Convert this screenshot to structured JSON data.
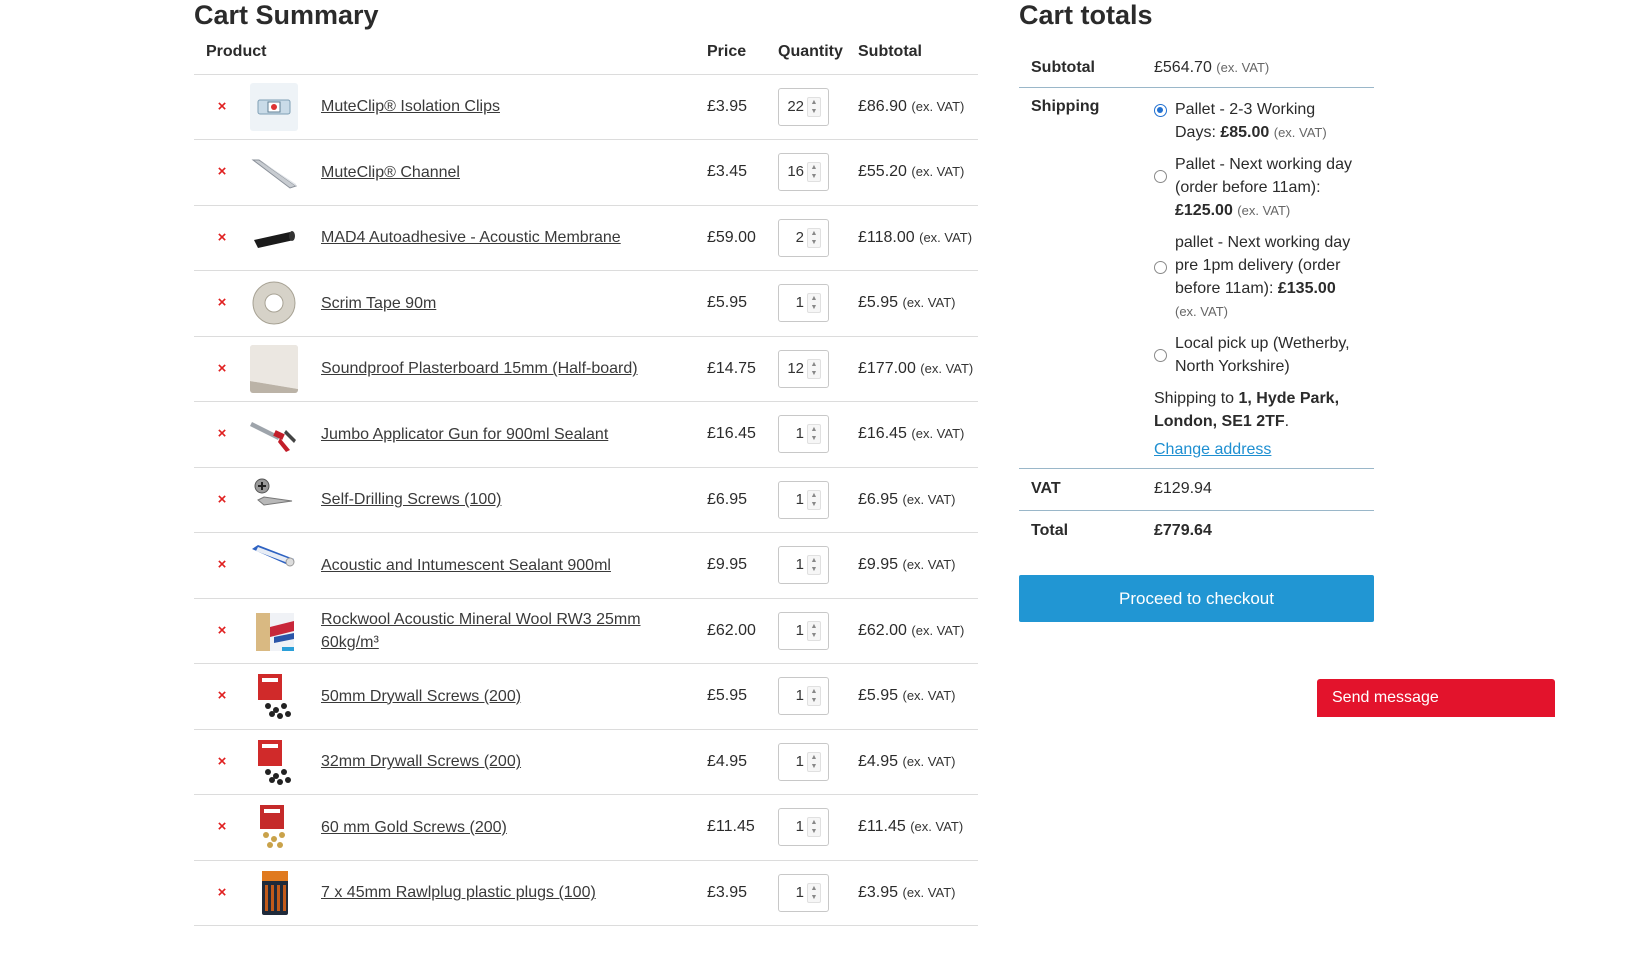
{
  "cart_summary": {
    "title": "Cart Summary",
    "headers": {
      "product": "Product",
      "price": "Price",
      "quantity": "Quantity",
      "subtotal": "Subtotal"
    },
    "remove_icon": "×",
    "items": [
      {
        "name": "MuteClip® Isolation Clips",
        "price": "£3.95",
        "qty": "22",
        "subtotal": "£86.90",
        "exvat": "(ex. VAT)",
        "icon": "isolation-clip-thumb"
      },
      {
        "name": "MuteClip® Channel",
        "price": "£3.45",
        "qty": "16",
        "subtotal": "£55.20",
        "exvat": "(ex. VAT)",
        "icon": "channel-thumb"
      },
      {
        "name": "MAD4 Autoadhesive - Acoustic Membrane",
        "price": "£59.00",
        "qty": "2",
        "subtotal": "£118.00",
        "exvat": "(ex. VAT)",
        "icon": "membrane-roll-thumb"
      },
      {
        "name": "Scrim Tape 90m",
        "price": "£5.95",
        "qty": "1",
        "subtotal": "£5.95",
        "exvat": "(ex. VAT)",
        "icon": "tape-roll-thumb"
      },
      {
        "name": "Soundproof Plasterboard 15mm (Half-board)",
        "price": "£14.75",
        "qty": "12",
        "subtotal": "£177.00",
        "exvat": "(ex. VAT)",
        "icon": "plasterboard-thumb"
      },
      {
        "name": "Jumbo Applicator Gun for 900ml Sealant",
        "price": "£16.45",
        "qty": "1",
        "subtotal": "£16.45",
        "exvat": "(ex. VAT)",
        "icon": "applicator-gun-thumb"
      },
      {
        "name": "Self-Drilling Screws (100)",
        "price": "£6.95",
        "qty": "1",
        "subtotal": "£6.95",
        "exvat": "(ex. VAT)",
        "icon": "screw-thumb"
      },
      {
        "name": "Acoustic and Intumescent Sealant 900ml",
        "price": "£9.95",
        "qty": "1",
        "subtotal": "£9.95",
        "exvat": "(ex. VAT)",
        "icon": "sealant-tube-thumb"
      },
      {
        "name": "Rockwool Acoustic Mineral Wool RW3 25mm 60kg/m³",
        "price": "£62.00",
        "qty": "1",
        "subtotal": "£62.00",
        "exvat": "(ex. VAT)",
        "icon": "mineral-wool-thumb"
      },
      {
        "name": "50mm Drywall Screws (200)",
        "price": "£5.95",
        "qty": "1",
        "subtotal": "£5.95",
        "exvat": "(ex. VAT)",
        "icon": "drywall-screws-box-thumb"
      },
      {
        "name": "32mm Drywall Screws (200)",
        "price": "£4.95",
        "qty": "1",
        "subtotal": "£4.95",
        "exvat": "(ex. VAT)",
        "icon": "drywall-screws-box-thumb"
      },
      {
        "name": "60 mm Gold Screws (200)",
        "price": "£11.45",
        "qty": "1",
        "subtotal": "£11.45",
        "exvat": "(ex. VAT)",
        "icon": "gold-screws-box-thumb"
      },
      {
        "name": "7 x 45mm Rawlplug plastic plugs (100)",
        "price": "£3.95",
        "qty": "1",
        "subtotal": "£3.95",
        "exvat": "(ex. VAT)",
        "icon": "plastic-plugs-thumb"
      }
    ]
  },
  "cart_totals": {
    "title": "Cart totals",
    "subtotal_label": "Subtotal",
    "subtotal_value": "£564.70",
    "subtotal_exvat": "(ex. VAT)",
    "shipping_label": "Shipping",
    "shipping_options": [
      {
        "text": "Pallet - 2-3 Working Days: ",
        "price": "£85.00",
        "exvat": "(ex. VAT)",
        "checked": true
      },
      {
        "text": "Pallet - Next working day (order before 11am): ",
        "price": "£125.00",
        "exvat": "(ex. VAT)",
        "checked": false
      },
      {
        "text": "pallet - Next working day pre 1pm delivery (order before 11am): ",
        "price": "£135.00",
        "exvat": "(ex. VAT)",
        "checked": false
      },
      {
        "text": "Local pick up (Wetherby, North Yorkshire)",
        "price": "",
        "exvat": "",
        "checked": false
      }
    ],
    "shipping_to_prefix": "Shipping to ",
    "shipping_to_address": "1, Hyde Park, London, SE1 2TF",
    "shipping_to_suffix": ".",
    "change_address": "Change address",
    "vat_label": "VAT",
    "vat_value": "£129.94",
    "total_label": "Total",
    "total_value": "£779.64",
    "checkout_button": "Proceed to checkout"
  },
  "chat": {
    "send_message": "Send message"
  },
  "colors": {
    "accent": "#2196d3",
    "remove": "#e02020",
    "chat": "#e3132c",
    "radio": "#2271d1"
  }
}
